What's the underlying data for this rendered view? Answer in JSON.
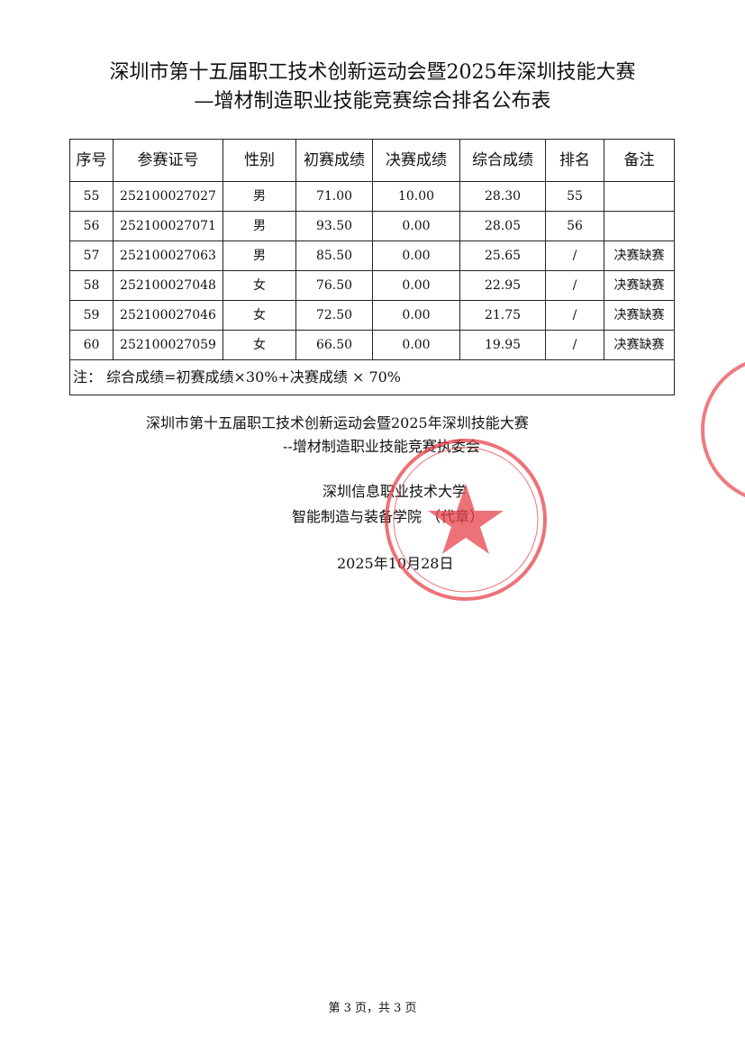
{
  "title": {
    "line1": "深圳市第十五届职工技术创新运动会暨2025年深圳技能大赛",
    "line2": "—增材制造职业技能竞赛综合排名公布表"
  },
  "table": {
    "headers": [
      "序号",
      "参赛证号",
      "性别",
      "初赛成绩",
      "决赛成绩",
      "综合成绩",
      "排名",
      "备注"
    ],
    "rows": [
      [
        "55",
        "252100027027",
        "男",
        "71.00",
        "10.00",
        "28.30",
        "55",
        ""
      ],
      [
        "56",
        "252100027071",
        "男",
        "93.50",
        "0.00",
        "28.05",
        "56",
        ""
      ],
      [
        "57",
        "252100027063",
        "男",
        "85.50",
        "0.00",
        "25.65",
        "/",
        "决赛缺赛"
      ],
      [
        "58",
        "252100027048",
        "女",
        "76.50",
        "0.00",
        "22.95",
        "/",
        "决赛缺赛"
      ],
      [
        "59",
        "252100027046",
        "女",
        "72.50",
        "0.00",
        "21.75",
        "/",
        "决赛缺赛"
      ],
      [
        "60",
        "252100027059",
        "女",
        "66.50",
        "0.00",
        "19.95",
        "/",
        "决赛缺赛"
      ]
    ],
    "note": "注：  综合成绩=初赛成绩×30%+决赛成绩 × 70%"
  },
  "signature": {
    "org_line1": "深圳市第十五届职工技术创新运动会暨2025年深圳技能大赛",
    "org_line2": "--增材制造职业技能竞赛执委会",
    "school": "深圳信息职业技术大学",
    "college": "智能制造与装备学院 （代章）",
    "date": "2025年10月28日"
  },
  "stamp": {
    "text_top": "深圳信息职业技术大学",
    "text_bottom": "智能制造与装备学院",
    "color": "#e8434b"
  },
  "footer": "第 3 页，共 3 页"
}
